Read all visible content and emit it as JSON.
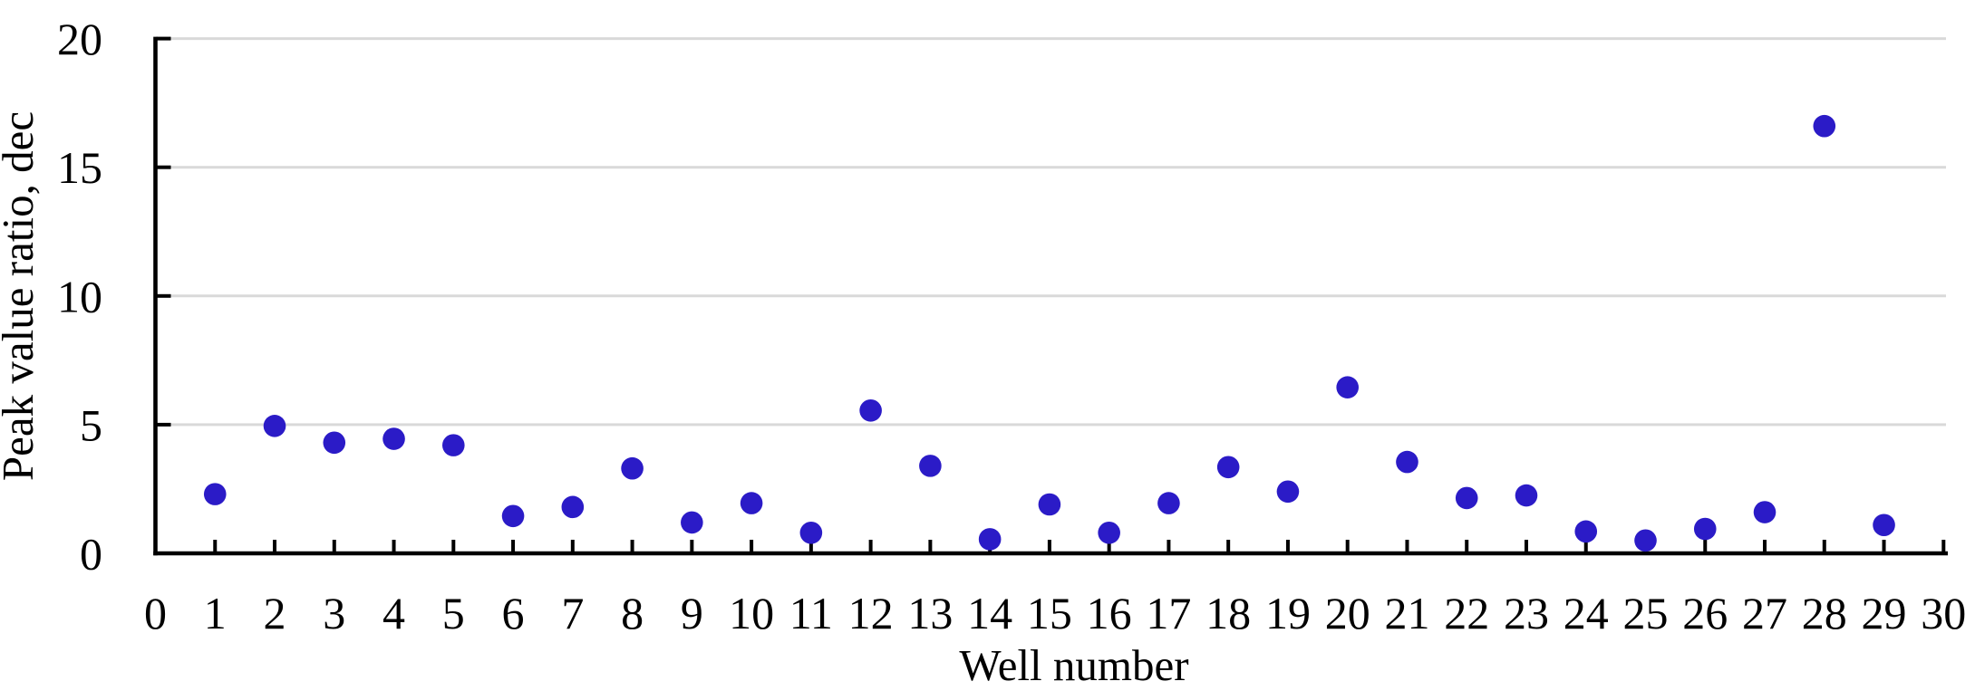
{
  "chart_data": {
    "type": "scatter",
    "title": "",
    "xlabel": "Well number",
    "ylabel": "Peak value ratio, dec",
    "series": [
      {
        "name": "Peak value ratio",
        "x": [
          1,
          2,
          3,
          4,
          5,
          6,
          7,
          8,
          9,
          10,
          11,
          12,
          13,
          14,
          15,
          16,
          17,
          18,
          19,
          20,
          21,
          22,
          23,
          24,
          25,
          26,
          27,
          28,
          29
        ],
        "values": [
          2.3,
          4.95,
          4.3,
          4.45,
          4.2,
          1.45,
          1.8,
          3.3,
          1.2,
          1.95,
          0.8,
          5.55,
          3.4,
          0.55,
          1.9,
          0.8,
          1.95,
          3.35,
          2.4,
          6.45,
          3.55,
          2.15,
          2.25,
          0.85,
          0.5,
          0.95,
          1.6,
          16.6,
          1.1
        ]
      }
    ],
    "xlim": [
      0,
      30
    ],
    "ylim": [
      0,
      20
    ],
    "x_ticks": [
      0,
      1,
      2,
      3,
      4,
      5,
      6,
      7,
      8,
      9,
      10,
      11,
      12,
      13,
      14,
      15,
      16,
      17,
      18,
      19,
      20,
      21,
      22,
      23,
      24,
      25,
      26,
      27,
      28,
      29,
      30
    ],
    "y_ticks": [
      0,
      5,
      10,
      15,
      20
    ],
    "grid": "horizontal gridlines at y ticks, ticks point inward",
    "legend_position": "none",
    "marker_shape": "circle",
    "colors": {
      "marker": "#2B1BC7",
      "gridline": "#D9D9D9",
      "axis": "#000000",
      "text": "#000000",
      "background": "#FFFFFF"
    }
  }
}
